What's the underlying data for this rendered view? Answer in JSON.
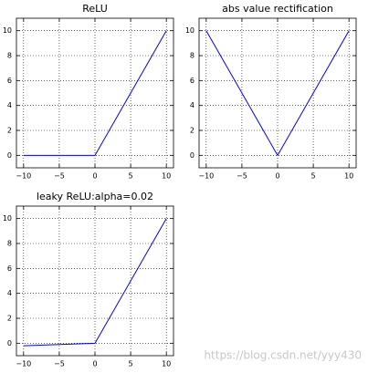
{
  "chart_data": [
    {
      "type": "line",
      "title": "ReLU",
      "x": [
        -10,
        0,
        10
      ],
      "values": [
        0,
        0,
        10
      ],
      "color": "#0000ff",
      "xlim": [
        -11,
        11
      ],
      "ylim": [
        -1,
        11
      ],
      "xticks": [
        {
          "value": -10,
          "label": "−10"
        },
        {
          "value": -5,
          "label": "−5"
        },
        0,
        5,
        10
      ],
      "yticks": [
        0,
        2,
        4,
        6,
        8,
        10
      ],
      "grid": true
    },
    {
      "type": "line",
      "title": "abs value rectification",
      "x": [
        -10,
        0,
        10
      ],
      "values": [
        10,
        0,
        10
      ],
      "color": "#0000ff",
      "xlim": [
        -11,
        11
      ],
      "ylim": [
        -1,
        11
      ],
      "xticks": [
        {
          "value": -10,
          "label": "−10"
        },
        {
          "value": -5,
          "label": "−5"
        },
        0,
        5,
        10
      ],
      "yticks": [
        0,
        2,
        4,
        6,
        8,
        10
      ],
      "grid": true
    },
    {
      "type": "line",
      "title": "leaky ReLU:alpha=0.02",
      "x": [
        -10,
        0,
        10
      ],
      "values": [
        -0.2,
        0,
        10
      ],
      "color": "#0000ff",
      "xlim": [
        -11,
        11
      ],
      "ylim": [
        -1,
        11
      ],
      "xticks": [
        {
          "value": -10,
          "label": "−10"
        },
        {
          "value": -5,
          "label": "−5"
        },
        0,
        5,
        10
      ],
      "yticks": [
        0,
        2,
        4,
        6,
        8,
        10
      ],
      "grid": true
    }
  ],
  "watermark": "https://blog.csdn.net/yyy430"
}
